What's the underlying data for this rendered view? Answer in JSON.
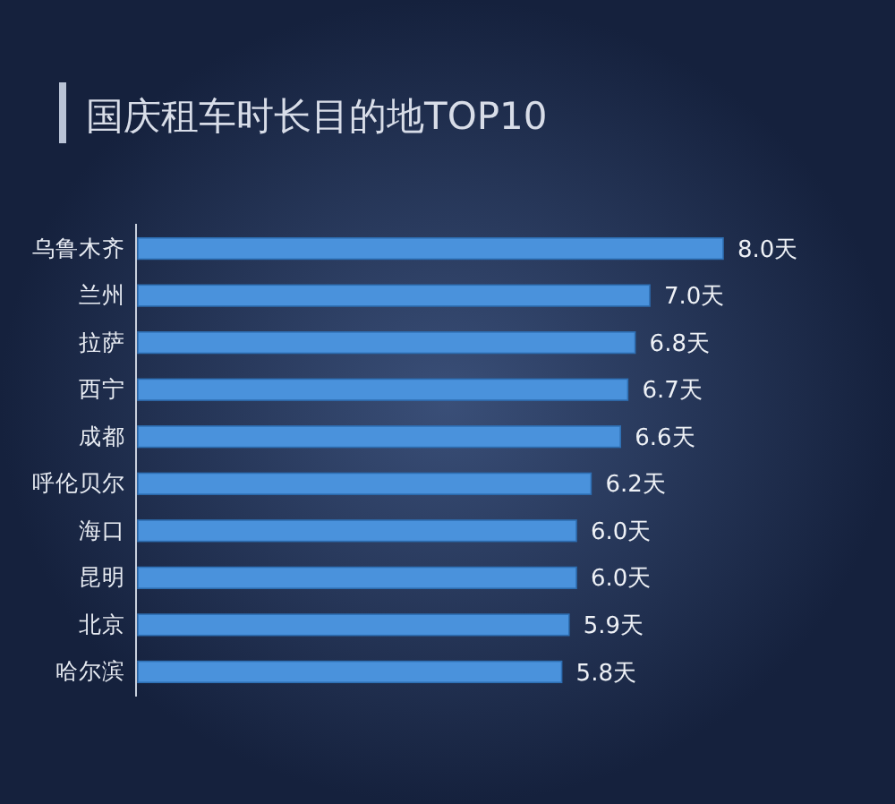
{
  "chart_data": {
    "type": "bar",
    "orientation": "horizontal",
    "title": "国庆租车时长目的地TOP10",
    "categories": [
      "乌鲁木齐",
      "兰州",
      "拉萨",
      "西宁",
      "成都",
      "呼伦贝尔",
      "海口",
      "昆明",
      "北京",
      "哈尔滨"
    ],
    "values": [
      8.0,
      7.0,
      6.8,
      6.7,
      6.6,
      6.2,
      6.0,
      6.0,
      5.9,
      5.8
    ],
    "value_labels": [
      "8.0天",
      "7.0天",
      "6.8天",
      "6.7天",
      "6.6天",
      "6.2天",
      "6.0天",
      "6.0天",
      "5.9天",
      "5.8天"
    ],
    "color": "#4a92dc",
    "tick_labels": "y"
  }
}
